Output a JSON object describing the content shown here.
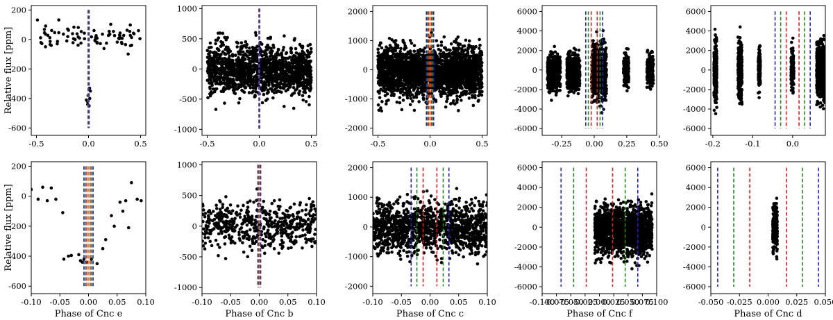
{
  "figure": {
    "ylabel": "Relative flux [ppm]"
  },
  "colors": {
    "points": "#000000",
    "blue": "#1f1fd6",
    "green": "#1a8a1a",
    "red": "#e31a1a",
    "orange": "#ff7f0e",
    "axes": "#000000"
  },
  "chart_data": [
    {
      "type": "scatter",
      "panel": "top-1",
      "xlabel": "",
      "xlim": [
        -0.55,
        0.55
      ],
      "ylim": [
        -650,
        230
      ],
      "xticks": [
        -0.5,
        0.0,
        0.5
      ],
      "xticklabels": [
        "-0.5",
        "0.0",
        "0.5"
      ],
      "yticks": [
        200,
        0,
        -200,
        -400,
        -600
      ],
      "yticklabels": [
        "200",
        "0",
        "-200",
        "-400",
        "-600"
      ],
      "ylabel": "Relative flux [ppm]",
      "vlines": [
        {
          "x": -0.006,
          "color": "blue"
        },
        {
          "x": -0.002,
          "color": "orange"
        },
        {
          "x": 0.002,
          "color": "green"
        },
        {
          "x": 0.006,
          "color": "blue"
        }
      ],
      "vline_span": [
        -600,
        200
      ],
      "clusters": [
        {
          "kind": "cloud",
          "x": [
            -0.5,
            0.5
          ],
          "yc": 15,
          "spread": 45,
          "n": 85,
          "cut": [
            -0.02,
            0.02
          ]
        },
        {
          "kind": "points",
          "xs": [
            -0.02,
            -0.01,
            -0.008,
            0.006,
            0.012,
            0.018,
            -0.004,
            0.01
          ],
          "ys": [
            -410,
            -420,
            -440,
            -450,
            -400,
            -350,
            -380,
            -330
          ]
        }
      ]
    },
    {
      "type": "scatter",
      "panel": "top-2",
      "xlabel": "",
      "xlim": [
        -0.55,
        0.55
      ],
      "ylim": [
        -1100,
        1050
      ],
      "xticks": [
        -0.5,
        0.0,
        0.5
      ],
      "xticklabels": [
        "-0.5",
        "0.0",
        "0.5"
      ],
      "yticks": [
        1000,
        500,
        0,
        -500,
        -1000
      ],
      "yticklabels": [
        "1000",
        "500",
        "0",
        "-500",
        "-1000"
      ],
      "vlines": [
        {
          "x": -0.004,
          "color": "blue"
        },
        {
          "x": 0.0,
          "color": "orange"
        },
        {
          "x": 0.004,
          "color": "blue"
        }
      ],
      "vline_span": [
        -1000,
        1000
      ],
      "clusters": [
        {
          "kind": "cloud",
          "x": [
            -0.5,
            0.5
          ],
          "yc": -20,
          "spread": 200,
          "n": 1500
        }
      ]
    },
    {
      "type": "scatter",
      "panel": "top-3",
      "xlabel": "",
      "xlim": [
        -0.55,
        0.55
      ],
      "ylim": [
        -2250,
        2200
      ],
      "xticks": [
        -0.5,
        0.0,
        0.5
      ],
      "xticklabels": [
        "-0.5",
        "0.0",
        "0.5"
      ],
      "yticks": [
        2000,
        1000,
        0,
        -1000,
        -2000
      ],
      "yticklabels": [
        "2000",
        "1000",
        "0",
        "-1000",
        "-2000"
      ],
      "vlines": [
        {
          "x": -0.035,
          "color": "blue"
        },
        {
          "x": -0.024,
          "color": "green"
        },
        {
          "x": -0.013,
          "color": "red"
        },
        {
          "x": 0.0,
          "color": "orange"
        },
        {
          "x": 0.013,
          "color": "red"
        },
        {
          "x": 0.024,
          "color": "green"
        },
        {
          "x": 0.035,
          "color": "blue"
        }
      ],
      "vline_span": [
        -2000,
        2000
      ],
      "clusters": [
        {
          "kind": "cloud",
          "x": [
            -0.5,
            0.5
          ],
          "yc": -50,
          "spread": 420,
          "n": 2600
        }
      ]
    },
    {
      "type": "scatter",
      "panel": "top-4",
      "xlabel": "",
      "xlim": [
        -0.4,
        0.48
      ],
      "ylim": [
        -6700,
        6600
      ],
      "xticks": [
        -0.25,
        0.0,
        0.25,
        0.5
      ],
      "xticklabels": [
        "-0.25",
        "0.00",
        "0.25",
        "0.50"
      ],
      "yticks": [
        6000,
        4000,
        2000,
        0,
        -2000,
        -4000,
        -6000
      ],
      "yticklabels": [
        "6000",
        "4000",
        "2000",
        "0",
        "-2000",
        "-4000",
        "-6000"
      ],
      "vlines": [
        {
          "x": -0.065,
          "color": "blue"
        },
        {
          "x": -0.045,
          "color": "green"
        },
        {
          "x": -0.023,
          "color": "red"
        },
        {
          "x": 0.023,
          "color": "red"
        },
        {
          "x": 0.045,
          "color": "green"
        },
        {
          "x": 0.065,
          "color": "blue"
        }
      ],
      "vline_span": [
        -6000,
        6000
      ],
      "clusters": [
        {
          "kind": "cloud",
          "x": [
            -0.36,
            -0.26
          ],
          "yc": -200,
          "spread": 900,
          "n": 550
        },
        {
          "kind": "cloud",
          "x": [
            -0.21,
            -0.11
          ],
          "yc": -100,
          "spread": 900,
          "n": 550
        },
        {
          "kind": "cloud",
          "x": [
            -0.02,
            0.095
          ],
          "yc": -200,
          "spread": 1300,
          "n": 700
        },
        {
          "kind": "cloud",
          "x": [
            0.225,
            0.265
          ],
          "yc": 0,
          "spread": 750,
          "n": 220
        },
        {
          "kind": "cloud",
          "x": [
            0.405,
            0.455
          ],
          "yc": 0,
          "spread": 800,
          "n": 240
        }
      ]
    },
    {
      "type": "scatter",
      "panel": "top-5",
      "xlabel": "",
      "xlim": [
        -0.205,
        0.082
      ],
      "ylim": [
        -6700,
        6600
      ],
      "xticks": [
        -0.2,
        -0.1,
        0.0
      ],
      "xticklabels": [
        "-0.2",
        "-0.1",
        "0.0"
      ],
      "yticks": [
        6000,
        4000,
        2000,
        0,
        -2000,
        -4000,
        -6000
      ],
      "yticklabels": [
        "6000",
        "4000",
        "2000",
        "0",
        "-2000",
        "-4000",
        "-6000"
      ],
      "vlines": [
        {
          "x": -0.044,
          "color": "blue"
        },
        {
          "x": -0.03,
          "color": "green"
        },
        {
          "x": -0.016,
          "color": "red"
        },
        {
          "x": 0.016,
          "color": "red"
        },
        {
          "x": 0.03,
          "color": "green"
        },
        {
          "x": 0.044,
          "color": "blue"
        }
      ],
      "vline_span": [
        -6000,
        6000
      ],
      "clusters": [
        {
          "kind": "cloud",
          "x": [
            -0.197,
            -0.19
          ],
          "yc": -100,
          "spread": 1400,
          "n": 330
        },
        {
          "kind": "cloud",
          "x": [
            -0.137,
            -0.127
          ],
          "yc": -100,
          "spread": 1450,
          "n": 360
        },
        {
          "kind": "cloud",
          "x": [
            -0.086,
            -0.081
          ],
          "yc": 0,
          "spread": 900,
          "n": 180
        },
        {
          "kind": "cloud",
          "x": [
            -0.004,
            0.003
          ],
          "yc": 0,
          "spread": 1000,
          "n": 200
        },
        {
          "kind": "cloud",
          "x": [
            0.06,
            0.082
          ],
          "yc": -100,
          "spread": 1500,
          "n": 480
        }
      ]
    },
    {
      "type": "scatter",
      "panel": "bottom-1",
      "xlabel": "Phase of Cnc e",
      "xlim": [
        -0.1,
        0.1
      ],
      "ylim": [
        -650,
        230
      ],
      "xticks": [
        -0.1,
        -0.05,
        0.0,
        0.05,
        0.1
      ],
      "xticklabels": [
        "-0.10",
        "-0.05",
        "0.00",
        "0.05",
        "0.10"
      ],
      "yticks": [
        200,
        0,
        -200,
        -400,
        -600
      ],
      "yticklabels": [
        "200",
        "0",
        "-200",
        "-400",
        "-600"
      ],
      "ylabel": "Relative flux [ppm]",
      "vlines": [
        {
          "x": -0.008,
          "color": "blue"
        },
        {
          "x": -0.0055,
          "color": "green"
        },
        {
          "x": -0.003,
          "color": "red"
        },
        {
          "x": 0.0,
          "color": "orange"
        },
        {
          "x": 0.003,
          "color": "red"
        },
        {
          "x": 0.0055,
          "color": "green"
        },
        {
          "x": 0.008,
          "color": "blue"
        }
      ],
      "vline_span": [
        -600,
        200
      ],
      "clusters": [
        {
          "kind": "points",
          "xs": [
            -0.1,
            -0.088,
            -0.08,
            -0.072,
            -0.065,
            -0.057,
            -0.045,
            -0.043,
            -0.035,
            -0.03,
            -0.017,
            -0.014,
            -0.011,
            -0.008,
            -0.003,
            0.005,
            0.015,
            0.025,
            0.03,
            0.04,
            0.045,
            0.055,
            0.06,
            0.065,
            0.07,
            0.075,
            0.085,
            0.092
          ],
          "ys": [
            45,
            -20,
            60,
            -30,
            55,
            -20,
            -110,
            -420,
            -400,
            -395,
            -390,
            -430,
            -440,
            -420,
            -440,
            -420,
            -450,
            -350,
            -290,
            -130,
            -200,
            -40,
            -100,
            -30,
            -210,
            90,
            -20,
            -30
          ]
        }
      ]
    },
    {
      "type": "scatter",
      "panel": "bottom-2",
      "xlabel": "Phase of Cnc b",
      "xlim": [
        -0.1,
        0.1
      ],
      "ylim": [
        -1100,
        1050
      ],
      "xticks": [
        -0.1,
        -0.05,
        0.0,
        0.05,
        0.1
      ],
      "xticklabels": [
        "-0.10",
        "-0.05",
        "0.00",
        "0.05",
        "0.10"
      ],
      "yticks": [
        1000,
        500,
        0,
        -500,
        -1000
      ],
      "yticklabels": [
        "1000",
        "500",
        "0",
        "-500",
        "-1000"
      ],
      "vlines": [
        {
          "x": -0.0025,
          "color": "blue"
        },
        {
          "x": -0.0012,
          "color": "green"
        },
        {
          "x": 0.0,
          "color": "red"
        },
        {
          "x": 0.0012,
          "color": "orange"
        },
        {
          "x": 0.0025,
          "color": "blue"
        }
      ],
      "vline_span": [
        -1000,
        1000
      ],
      "clusters": [
        {
          "kind": "cloud",
          "x": [
            -0.1,
            0.1
          ],
          "yc": 0,
          "spread": 190,
          "n": 520
        }
      ]
    },
    {
      "type": "scatter",
      "panel": "bottom-3",
      "xlabel": "Phase of Cnc c",
      "xlim": [
        -0.1,
        0.1
      ],
      "ylim": [
        -2250,
        2200
      ],
      "xticks": [
        -0.1,
        -0.05,
        0.0,
        0.05,
        0.1
      ],
      "xticklabels": [
        "-0.10",
        "-0.05",
        "0.00",
        "0.05",
        "0.10"
      ],
      "yticks": [
        2000,
        1000,
        0,
        -1000,
        -2000
      ],
      "yticklabels": [
        "2000",
        "1000",
        "0",
        "-1000",
        "-2000"
      ],
      "vlines": [
        {
          "x": -0.033,
          "color": "blue"
        },
        {
          "x": -0.023,
          "color": "green"
        },
        {
          "x": -0.012,
          "color": "red"
        },
        {
          "x": 0.012,
          "color": "red"
        },
        {
          "x": 0.023,
          "color": "green"
        },
        {
          "x": 0.033,
          "color": "blue"
        }
      ],
      "vline_span": [
        -2000,
        2000
      ],
      "clusters": [
        {
          "kind": "cloud",
          "x": [
            -0.1,
            0.1
          ],
          "yc": -20,
          "spread": 420,
          "n": 1300
        }
      ]
    },
    {
      "type": "scatter",
      "panel": "bottom-4",
      "xlabel": "Phase of Cnc f",
      "xlim": [
        -0.1,
        0.1
      ],
      "ylim": [
        -6700,
        6600
      ],
      "xticks": [
        -0.1,
        -0.075,
        -0.05,
        -0.025,
        0.0,
        0.025,
        0.05,
        0.075,
        0.1
      ],
      "xticklabels": [
        "-0.100",
        "-0.075",
        "-0.050",
        "-0.025",
        "0.000",
        "0.025",
        "0.050",
        "0.075",
        "0.100"
      ],
      "yticks": [
        6000,
        4000,
        2000,
        0,
        -2000,
        -4000,
        -6000
      ],
      "yticklabels": [
        "6000",
        "4000",
        "2000",
        "0",
        "-2000",
        "-4000",
        "-6000"
      ],
      "vlines": [
        {
          "x": -0.067,
          "color": "blue"
        },
        {
          "x": -0.045,
          "color": "green"
        },
        {
          "x": -0.023,
          "color": "red"
        },
        {
          "x": 0.023,
          "color": "red"
        },
        {
          "x": 0.045,
          "color": "green"
        },
        {
          "x": 0.067,
          "color": "blue"
        }
      ],
      "vline_span": [
        -6000,
        6000
      ],
      "clusters": [
        {
          "kind": "cloud",
          "x": [
            -0.008,
            0.092
          ],
          "yc": -300,
          "spread": 1200,
          "n": 1600
        }
      ]
    },
    {
      "type": "scatter",
      "panel": "bottom-5",
      "xlabel": "Phase of Cnc d",
      "xlim": [
        -0.05,
        0.05
      ],
      "ylim": [
        -6700,
        6600
      ],
      "xticks": [
        -0.05,
        -0.025,
        0.0,
        0.025,
        0.05
      ],
      "xticklabels": [
        "-0.050",
        "-0.025",
        "0.000",
        "0.025",
        "0.050"
      ],
      "yticks": [
        6000,
        4000,
        2000,
        0,
        -2000,
        -4000,
        -6000
      ],
      "yticklabels": [
        "6000",
        "4000",
        "2000",
        "0",
        "-2000",
        "-4000",
        "-6000"
      ],
      "vlines": [
        {
          "x": -0.044,
          "color": "blue"
        },
        {
          "x": -0.03,
          "color": "green"
        },
        {
          "x": -0.016,
          "color": "red"
        },
        {
          "x": 0.016,
          "color": "red"
        },
        {
          "x": 0.03,
          "color": "green"
        },
        {
          "x": 0.044,
          "color": "blue"
        }
      ],
      "vline_span": [
        -6000,
        6000
      ],
      "clusters": [
        {
          "kind": "cloud",
          "x": [
            0.004,
            0.008
          ],
          "yc": 0,
          "spread": 1000,
          "n": 320
        }
      ]
    }
  ]
}
